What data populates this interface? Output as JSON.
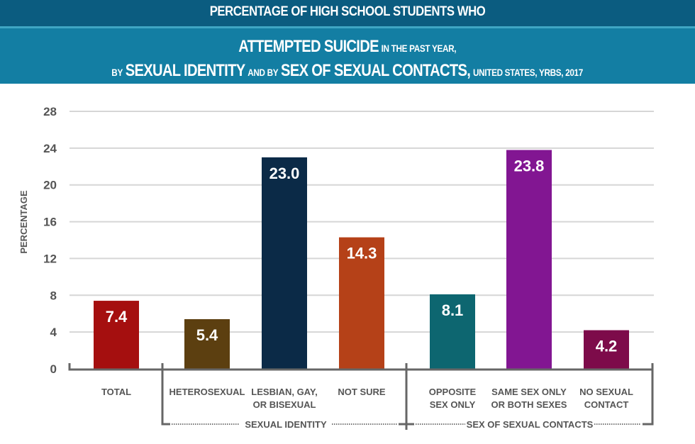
{
  "header": {
    "line1": "PERCENTAGE OF HIGH SCHOOL STUDENTS WHO",
    "line2_big": "ATTEMPTED SUICIDE",
    "line2_small": "IN THE PAST YEAR,",
    "line3_a_small": "BY",
    "line3_b_big": "SEXUAL IDENTITY",
    "line3_c_small": "AND BY",
    "line3_d_big": "SEX OF SEXUAL CONTACTS,",
    "line3_e_small": "UNITED STATES, YRBS, 2017"
  },
  "chart_data": {
    "type": "bar",
    "title": "PERCENTAGE OF HIGH SCHOOL STUDENTS WHO ATTEMPTED SUICIDE IN THE PAST YEAR, BY SEXUAL IDENTITY AND BY SEX OF SEXUAL CONTACTS, UNITED STATES, YRBS, 2017",
    "xlabel": "",
    "ylabel": "PERCENTAGE",
    "ylim": [
      0,
      28
    ],
    "yticks": [
      0,
      4,
      8,
      12,
      16,
      20,
      24,
      28
    ],
    "grid": true,
    "categories": [
      [
        "TOTAL"
      ],
      [
        "HETEROSEXUAL"
      ],
      [
        "LESBIAN, GAY,",
        "OR BISEXUAL"
      ],
      [
        "NOT SURE"
      ],
      [
        "OPPOSITE",
        "SEX ONLY"
      ],
      [
        "SAME SEX ONLY",
        "OR BOTH SEXES"
      ],
      [
        "NO SEXUAL",
        "CONTACT"
      ]
    ],
    "values": [
      7.4,
      5.4,
      23.0,
      14.3,
      8.1,
      23.8,
      4.2
    ],
    "value_labels": [
      "7.4",
      "5.4",
      "23.0",
      "14.3",
      "8.1",
      "23.8",
      "4.2"
    ],
    "colors": [
      "#a50f0f",
      "#5c3f10",
      "#0b2a47",
      "#b54118",
      "#0d6670",
      "#821692",
      "#7d0b4a"
    ],
    "groups": [
      {
        "label": "SEXUAL IDENTITY",
        "categories": [
          1,
          2,
          3
        ]
      },
      {
        "label": "SEX OF SEXUAL CONTACTS",
        "categories": [
          4,
          5,
          6
        ]
      }
    ]
  }
}
